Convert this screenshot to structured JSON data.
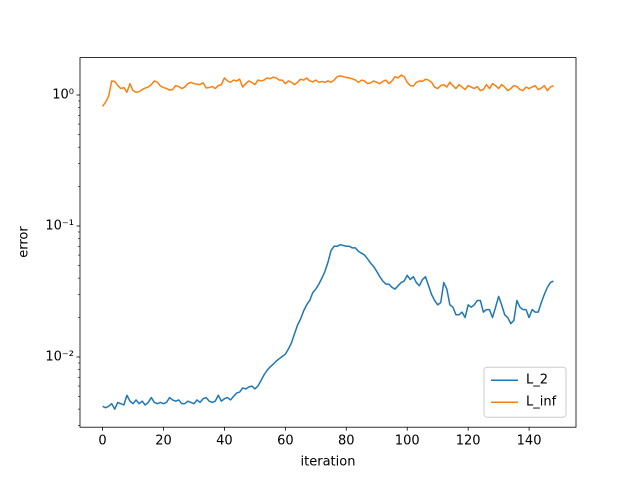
{
  "chart_data": {
    "type": "line",
    "xlabel": "iteration",
    "ylabel": "error",
    "x": [
      0,
      1,
      2,
      3,
      4,
      5,
      6,
      7,
      8,
      9,
      10,
      11,
      12,
      13,
      14,
      15,
      16,
      17,
      18,
      19,
      20,
      21,
      22,
      23,
      24,
      25,
      26,
      27,
      28,
      29,
      30,
      31,
      32,
      33,
      34,
      35,
      36,
      37,
      38,
      39,
      40,
      41,
      42,
      43,
      44,
      45,
      46,
      47,
      48,
      49,
      50,
      51,
      52,
      53,
      54,
      55,
      56,
      57,
      58,
      59,
      60,
      61,
      62,
      63,
      64,
      65,
      66,
      67,
      68,
      69,
      70,
      71,
      72,
      73,
      74,
      75,
      76,
      77,
      78,
      79,
      80,
      81,
      82,
      83,
      84,
      85,
      86,
      87,
      88,
      89,
      90,
      91,
      92,
      93,
      94,
      95,
      96,
      97,
      98,
      99,
      100,
      101,
      102,
      103,
      104,
      105,
      106,
      107,
      108,
      109,
      110,
      111,
      112,
      113,
      114,
      115,
      116,
      117,
      118,
      119,
      120,
      121,
      122,
      123,
      124,
      125,
      126,
      127,
      128,
      129,
      130,
      131,
      132,
      133,
      134,
      135,
      136,
      137,
      138,
      139,
      140,
      141,
      142,
      143,
      144,
      145,
      146,
      147,
      148
    ],
    "series": [
      {
        "name": "L_2",
        "color": "#1f77b4",
        "values": [
          0.0042,
          0.0041,
          0.0042,
          0.0044,
          0.004,
          0.0045,
          0.0044,
          0.0043,
          0.0051,
          0.0046,
          0.0044,
          0.0047,
          0.0044,
          0.0046,
          0.0043,
          0.0045,
          0.0049,
          0.0045,
          0.0044,
          0.0045,
          0.0044,
          0.0045,
          0.0049,
          0.0047,
          0.0046,
          0.0047,
          0.0044,
          0.0044,
          0.0046,
          0.0045,
          0.0044,
          0.0047,
          0.0045,
          0.0048,
          0.0049,
          0.0046,
          0.0045,
          0.0046,
          0.0051,
          0.0046,
          0.0048,
          0.0049,
          0.0047,
          0.005,
          0.0053,
          0.0054,
          0.0058,
          0.0057,
          0.0059,
          0.006,
          0.0057,
          0.006,
          0.0066,
          0.0073,
          0.0079,
          0.0084,
          0.0088,
          0.0093,
          0.0097,
          0.0101,
          0.0105,
          0.0115,
          0.0128,
          0.015,
          0.0175,
          0.0195,
          0.0225,
          0.025,
          0.027,
          0.031,
          0.033,
          0.036,
          0.04,
          0.045,
          0.053,
          0.065,
          0.07,
          0.07,
          0.072,
          0.071,
          0.07,
          0.07,
          0.068,
          0.068,
          0.064,
          0.062,
          0.06,
          0.056,
          0.052,
          0.049,
          0.045,
          0.041,
          0.038,
          0.036,
          0.036,
          0.034,
          0.033,
          0.035,
          0.037,
          0.038,
          0.042,
          0.039,
          0.041,
          0.037,
          0.035,
          0.039,
          0.041,
          0.035,
          0.03,
          0.027,
          0.025,
          0.026,
          0.037,
          0.033,
          0.025,
          0.024,
          0.021,
          0.021,
          0.022,
          0.02,
          0.025,
          0.024,
          0.025,
          0.027,
          0.027,
          0.022,
          0.023,
          0.023,
          0.02,
          0.024,
          0.029,
          0.025,
          0.021,
          0.02,
          0.018,
          0.019,
          0.027,
          0.024,
          0.023,
          0.023,
          0.02,
          0.023,
          0.022,
          0.022,
          0.026,
          0.03,
          0.034,
          0.037,
          0.038
        ]
      },
      {
        "name": "L_inf",
        "color": "#ff7f0e",
        "values": [
          0.82,
          0.88,
          0.98,
          1.28,
          1.27,
          1.18,
          1.12,
          1.14,
          1.05,
          1.22,
          1.08,
          1.05,
          1.06,
          1.1,
          1.13,
          1.15,
          1.2,
          1.28,
          1.25,
          1.17,
          1.14,
          1.12,
          1.09,
          1.1,
          1.18,
          1.16,
          1.12,
          1.15,
          1.22,
          1.25,
          1.22,
          1.21,
          1.2,
          1.24,
          1.13,
          1.14,
          1.16,
          1.12,
          1.18,
          1.2,
          1.35,
          1.28,
          1.25,
          1.3,
          1.28,
          1.32,
          1.15,
          1.22,
          1.28,
          1.25,
          1.2,
          1.3,
          1.28,
          1.3,
          1.35,
          1.33,
          1.37,
          1.35,
          1.3,
          1.3,
          1.22,
          1.28,
          1.25,
          1.2,
          1.25,
          1.32,
          1.3,
          1.35,
          1.28,
          1.26,
          1.3,
          1.25,
          1.27,
          1.25,
          1.28,
          1.25,
          1.3,
          1.38,
          1.4,
          1.38,
          1.36,
          1.35,
          1.33,
          1.3,
          1.25,
          1.3,
          1.28,
          1.22,
          1.24,
          1.28,
          1.25,
          1.22,
          1.27,
          1.3,
          1.22,
          1.28,
          1.38,
          1.35,
          1.42,
          1.38,
          1.25,
          1.18,
          1.17,
          1.25,
          1.28,
          1.27,
          1.32,
          1.3,
          1.25,
          1.15,
          1.12,
          1.18,
          1.2,
          1.15,
          1.25,
          1.18,
          1.12,
          1.2,
          1.15,
          1.1,
          1.18,
          1.15,
          1.12,
          1.16,
          1.08,
          1.1,
          1.2,
          1.12,
          1.22,
          1.18,
          1.12,
          1.2,
          1.15,
          1.08,
          1.12,
          1.18,
          1.16,
          1.1,
          1.08,
          1.15,
          1.12,
          1.15,
          1.18,
          1.1,
          1.13,
          1.18,
          1.08,
          1.15,
          1.18
        ]
      }
    ],
    "xlim": [
      -7.4,
      155.4
    ],
    "xticks": [
      0,
      20,
      40,
      60,
      80,
      100,
      120,
      140
    ],
    "ylim": [
      0.00291,
      1.93
    ],
    "ylog": true,
    "yticks": [
      {
        "value": 0.01,
        "label": "10⁻²"
      },
      {
        "value": 0.1,
        "label": "10⁻¹"
      },
      {
        "value": 1,
        "label": "10⁰"
      }
    ],
    "yminorticks": [
      0.003,
      0.004,
      0.005,
      0.006,
      0.007,
      0.008,
      0.009,
      0.02,
      0.03,
      0.04,
      0.05,
      0.06,
      0.07,
      0.08,
      0.09,
      0.2,
      0.3,
      0.4,
      0.5,
      0.6,
      0.7,
      0.8,
      0.9
    ],
    "legend": "lower right"
  }
}
